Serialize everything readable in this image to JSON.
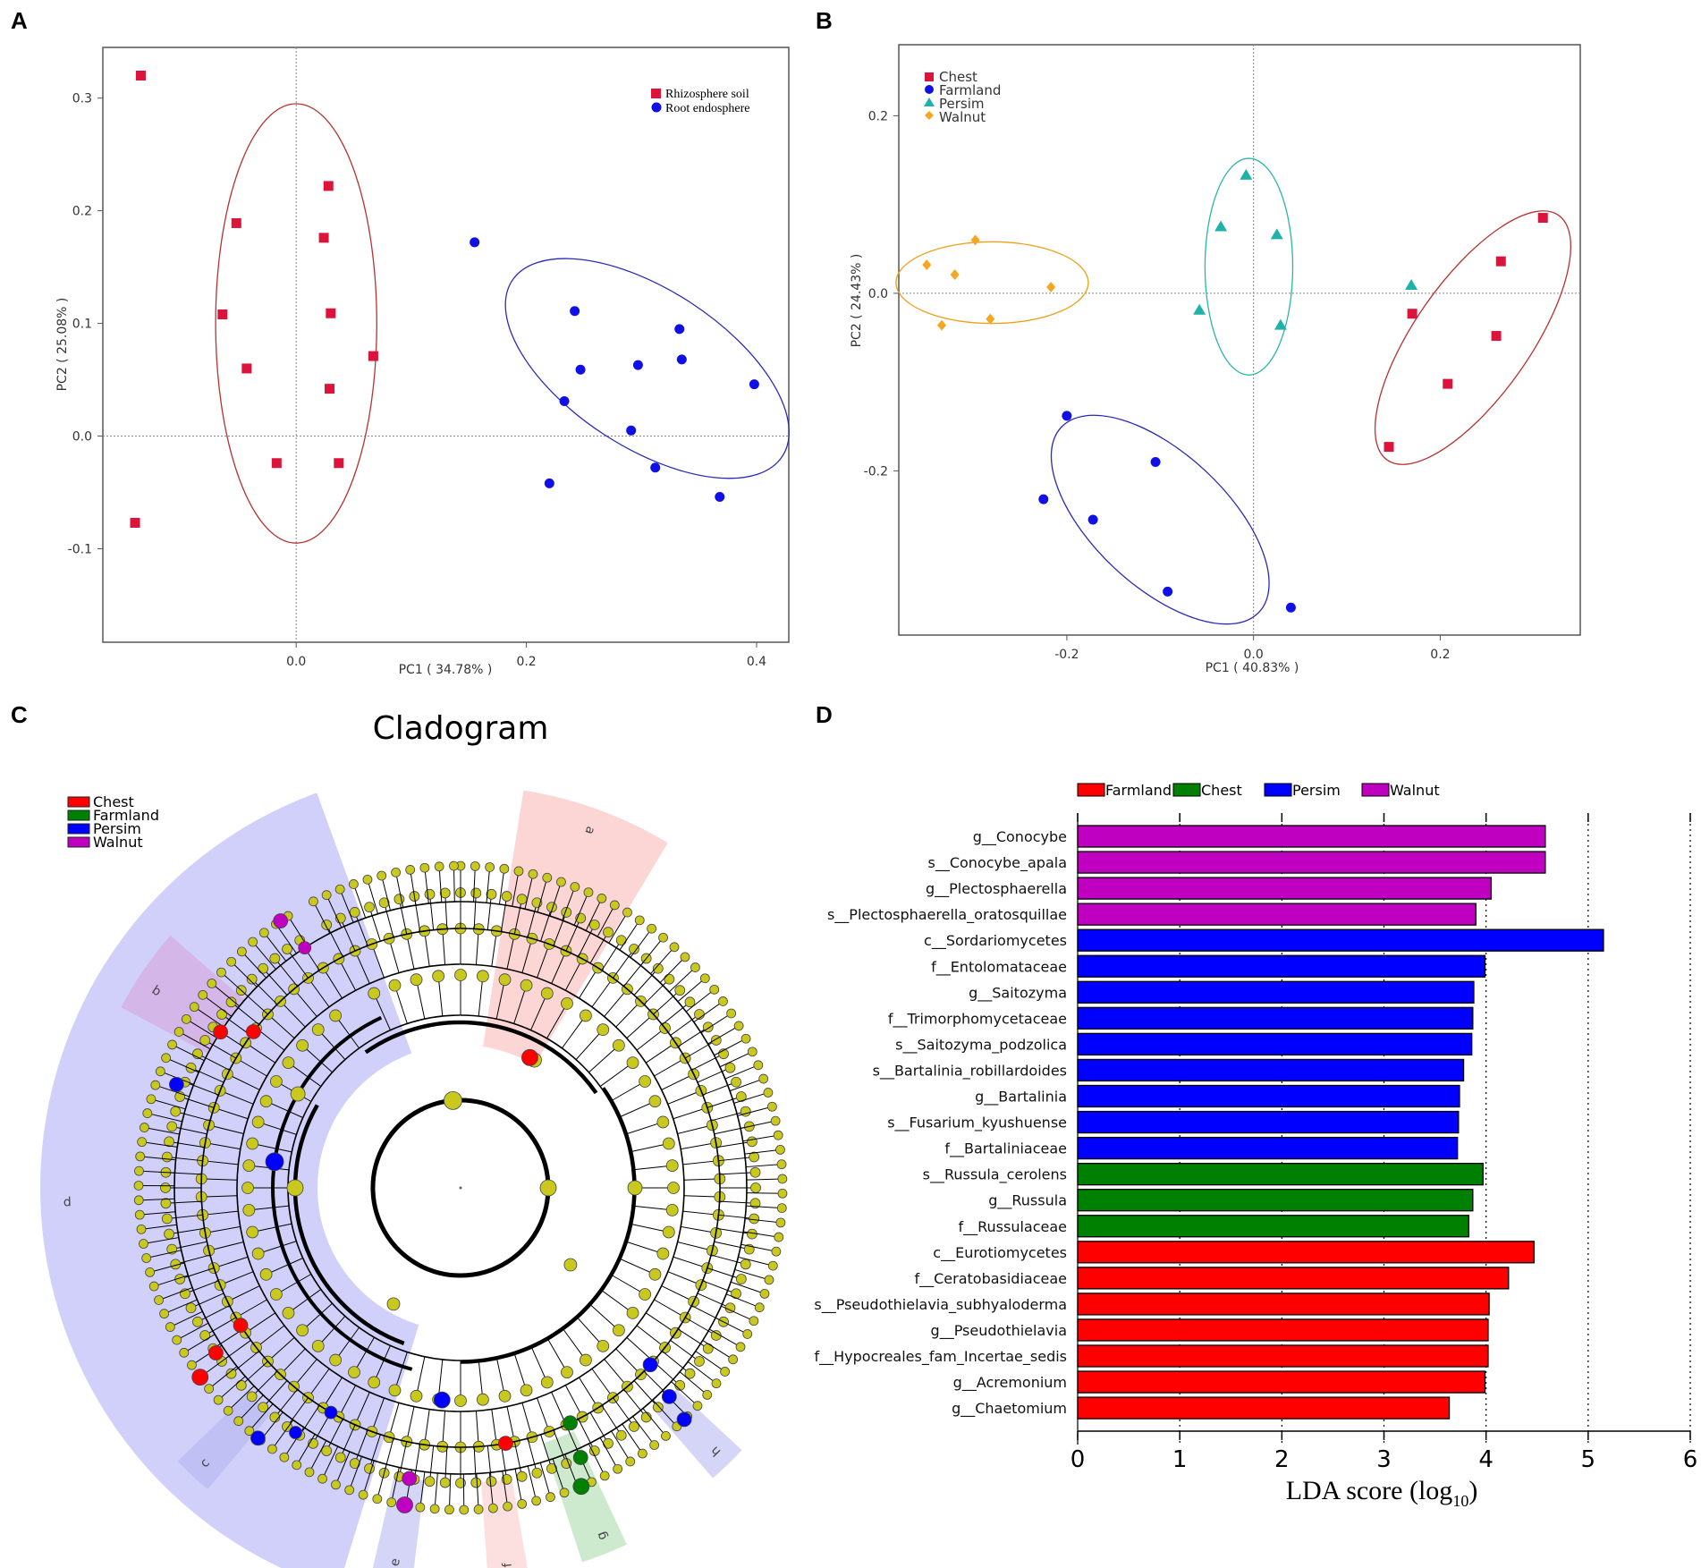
{
  "panels": {
    "a": "A",
    "b": "B",
    "c": "C",
    "d": "D"
  },
  "colors": {
    "red": "#dc143c",
    "blue": "#1010e6",
    "teal": "#20b2aa",
    "orange": "#f5a623",
    "ellipse_red": "#b83232",
    "ellipse_blue": "#2a2ab8",
    "ellipse_teal": "#29b5a8",
    "ellipse_orange": "#e9a21b",
    "node": "#c8c81e",
    "lda_magenta": "#c000c0",
    "lda_blue": "#0000ff",
    "lda_green": "#008000",
    "lda_red": "#ff0000"
  },
  "chart_data": [
    {
      "id": "A",
      "type": "scatter",
      "xlabel": "PC1 ( 34.78% )",
      "ylabel": "PC2 ( 25.08% )",
      "xlim": [
        -0.168,
        0.428
      ],
      "ylim": [
        -0.183,
        0.345
      ],
      "xticks": [
        "0.0",
        "0.2",
        "0.4"
      ],
      "xtick_values": [
        0.0,
        0.2,
        0.4
      ],
      "yticks": [
        "-0.1",
        "0.0",
        "0.1",
        "0.2",
        "0.3"
      ],
      "ytick_values": [
        -0.1,
        0.0,
        0.1,
        0.2,
        0.3
      ],
      "legend": [
        {
          "name": "Rhizosphere soil",
          "marker": "square",
          "color": "#dc143c"
        },
        {
          "name": "Root endosphere",
          "marker": "circle",
          "color": "#1010e6"
        }
      ],
      "series": [
        {
          "name": "Rhizosphere soil",
          "marker": "square",
          "color": "#dc143c",
          "points": [
            [
              -0.135,
              0.32
            ],
            [
              -0.14,
              -0.077
            ],
            [
              0.028,
              0.222
            ],
            [
              -0.052,
              0.189
            ],
            [
              0.024,
              0.176
            ],
            [
              -0.064,
              0.108
            ],
            [
              0.03,
              0.109
            ],
            [
              -0.043,
              0.06
            ],
            [
              0.067,
              0.071
            ],
            [
              0.029,
              0.042
            ],
            [
              -0.017,
              -0.024
            ],
            [
              0.037,
              -0.024
            ]
          ]
        },
        {
          "name": "Root endosphere",
          "marker": "circle",
          "color": "#1010e6",
          "points": [
            [
              0.155,
              0.172
            ],
            [
              0.242,
              0.111
            ],
            [
              0.333,
              0.095
            ],
            [
              0.247,
              0.059
            ],
            [
              0.297,
              0.063
            ],
            [
              0.335,
              0.068
            ],
            [
              0.398,
              0.046
            ],
            [
              0.233,
              0.031
            ],
            [
              0.291,
              0.005
            ],
            [
              0.312,
              -0.028
            ],
            [
              0.22,
              -0.042
            ],
            [
              0.368,
              -0.054
            ]
          ]
        }
      ],
      "ellipses": [
        {
          "color": "#b83232",
          "cx": 0.0,
          "cy": 0.1,
          "rx": 0.07,
          "ry": 0.195,
          "angle": 0
        },
        {
          "color": "#2a2ab8",
          "cx": 0.305,
          "cy": 0.06,
          "rx": 0.14,
          "ry": 0.07,
          "angle": 33
        }
      ]
    },
    {
      "id": "B",
      "type": "scatter",
      "xlabel": "PC1 ( 40.83% )",
      "ylabel": "PC2 ( 24.43% )",
      "xlim": [
        -0.38,
        0.35
      ],
      "ylim": [
        -0.385,
        0.28
      ],
      "xticks": [
        "-0.2",
        "0.0",
        "0.2"
      ],
      "xtick_values": [
        -0.2,
        0.0,
        0.2
      ],
      "yticks": [
        "-0.2",
        "0.0",
        "0.2"
      ],
      "ytick_values": [
        -0.2,
        0.0,
        0.2
      ],
      "legend": [
        {
          "name": "Chest",
          "marker": "square",
          "color": "#dc143c"
        },
        {
          "name": "Farmland",
          "marker": "circle",
          "color": "#1010e6"
        },
        {
          "name": "Persim",
          "marker": "triangle",
          "color": "#20b2aa"
        },
        {
          "name": "Walnut",
          "marker": "diamond",
          "color": "#f5a623"
        }
      ],
      "series": [
        {
          "name": "Chest",
          "marker": "square",
          "color": "#dc143c",
          "points": [
            [
              0.31,
              0.085
            ],
            [
              0.265,
              0.036
            ],
            [
              0.17,
              -0.023
            ],
            [
              0.26,
              -0.048
            ],
            [
              0.208,
              -0.102
            ],
            [
              0.145,
              -0.173
            ]
          ]
        },
        {
          "name": "Farmland",
          "marker": "circle",
          "color": "#1010e6",
          "points": [
            [
              -0.2,
              -0.138
            ],
            [
              -0.105,
              -0.19
            ],
            [
              -0.225,
              -0.232
            ],
            [
              -0.172,
              -0.255
            ],
            [
              -0.092,
              -0.336
            ],
            [
              0.04,
              -0.354
            ]
          ]
        },
        {
          "name": "Persim",
          "marker": "triangle",
          "color": "#20b2aa",
          "points": [
            [
              -0.008,
              0.133
            ],
            [
              -0.035,
              0.075
            ],
            [
              0.025,
              0.066
            ],
            [
              0.169,
              0.009
            ],
            [
              -0.058,
              -0.019
            ],
            [
              0.029,
              -0.036
            ]
          ]
        },
        {
          "name": "Walnut",
          "marker": "diamond",
          "color": "#f5a623",
          "points": [
            [
              -0.298,
              0.06
            ],
            [
              -0.35,
              0.032
            ],
            [
              -0.32,
              0.021
            ],
            [
              -0.217,
              0.007
            ],
            [
              -0.334,
              -0.036
            ],
            [
              -0.282,
              -0.029
            ]
          ]
        }
      ],
      "ellipses": [
        {
          "color": "#b83232",
          "cx": 0.235,
          "cy": -0.05,
          "rx": 0.16,
          "ry": 0.065,
          "angle": -55
        },
        {
          "color": "#2a2ab8",
          "cx": -0.1,
          "cy": -0.255,
          "rx": 0.145,
          "ry": 0.075,
          "angle": 43
        },
        {
          "color": "#29b5a8",
          "cx": -0.005,
          "cy": 0.03,
          "rx": 0.047,
          "ry": 0.122,
          "angle": 0
        },
        {
          "color": "#e9a21b",
          "cx": -0.28,
          "cy": 0.012,
          "rx": 0.103,
          "ry": 0.046,
          "angle": 0
        }
      ]
    },
    {
      "id": "C",
      "type": "cladogram",
      "title": "Cladogram",
      "legend": [
        {
          "name": "Chest",
          "color": "#ff0000"
        },
        {
          "name": "Farmland",
          "color": "#008000"
        },
        {
          "name": "Persim",
          "color": "#0000ff"
        },
        {
          "name": "Walnut",
          "color": "#c000c0"
        }
      ],
      "clade_labels": [
        "a",
        "b",
        "c",
        "d",
        "e",
        "f",
        "g",
        "h"
      ]
    },
    {
      "id": "D",
      "type": "bar",
      "orientation": "horizontal",
      "xlabel": "LDA score (log",
      "xlabel_sub": "10",
      "xlabel_end": ")",
      "xlim": [
        0,
        6
      ],
      "xticks": [
        "0",
        "1",
        "2",
        "3",
        "4",
        "5",
        "6"
      ],
      "xtick_values": [
        0,
        1,
        2,
        3,
        4,
        5,
        6
      ],
      "legend": [
        {
          "name": "Farmland",
          "color": "#ff0000"
        },
        {
          "name": "Chest",
          "color": "#008000"
        },
        {
          "name": "Persim",
          "color": "#0000ff"
        },
        {
          "name": "Walnut",
          "color": "#c000c0"
        }
      ],
      "categories": [
        "g__Conocybe",
        "s__Conocybe_apala",
        "g__Plectosphaerella",
        "s__Plectosphaerella_oratosquillae",
        "c__Sordariomycetes",
        "f__Entolomataceae",
        "g__Saitozyma",
        "f__Trimorphomycetaceae",
        "s__Saitozyma_podzolica",
        "s__Bartalinia_robillardoides",
        "g__Bartalinia",
        "s__Fusarium_kyushuense",
        "f__Bartaliniaceae",
        "s__Russula_cerolens",
        "g__Russula",
        "f__Russulaceae",
        "c__Eurotiomycetes",
        "f__Ceratobasidiaceae",
        "s__Pseudothielavia_subhyaloderma",
        "g__Pseudothielavia",
        "f__Hypocreales_fam_Incertae_sedis",
        "g__Acremonium",
        "g__Chaetomium"
      ],
      "values": [
        4.58,
        4.58,
        4.05,
        3.9,
        5.15,
        3.99,
        3.88,
        3.87,
        3.86,
        3.78,
        3.74,
        3.73,
        3.72,
        3.97,
        3.87,
        3.83,
        4.47,
        4.22,
        4.03,
        4.02,
        4.02,
        3.99,
        3.64
      ],
      "groups": [
        "Walnut",
        "Walnut",
        "Walnut",
        "Walnut",
        "Persim",
        "Persim",
        "Persim",
        "Persim",
        "Persim",
        "Persim",
        "Persim",
        "Persim",
        "Persim",
        "Chest",
        "Chest",
        "Chest",
        "Farmland",
        "Farmland",
        "Farmland",
        "Farmland",
        "Farmland",
        "Farmland",
        "Farmland"
      ],
      "group_colors": {
        "Walnut": "#c000c0",
        "Persim": "#0000ff",
        "Chest": "#008000",
        "Farmland": "#ff0000"
      }
    }
  ]
}
